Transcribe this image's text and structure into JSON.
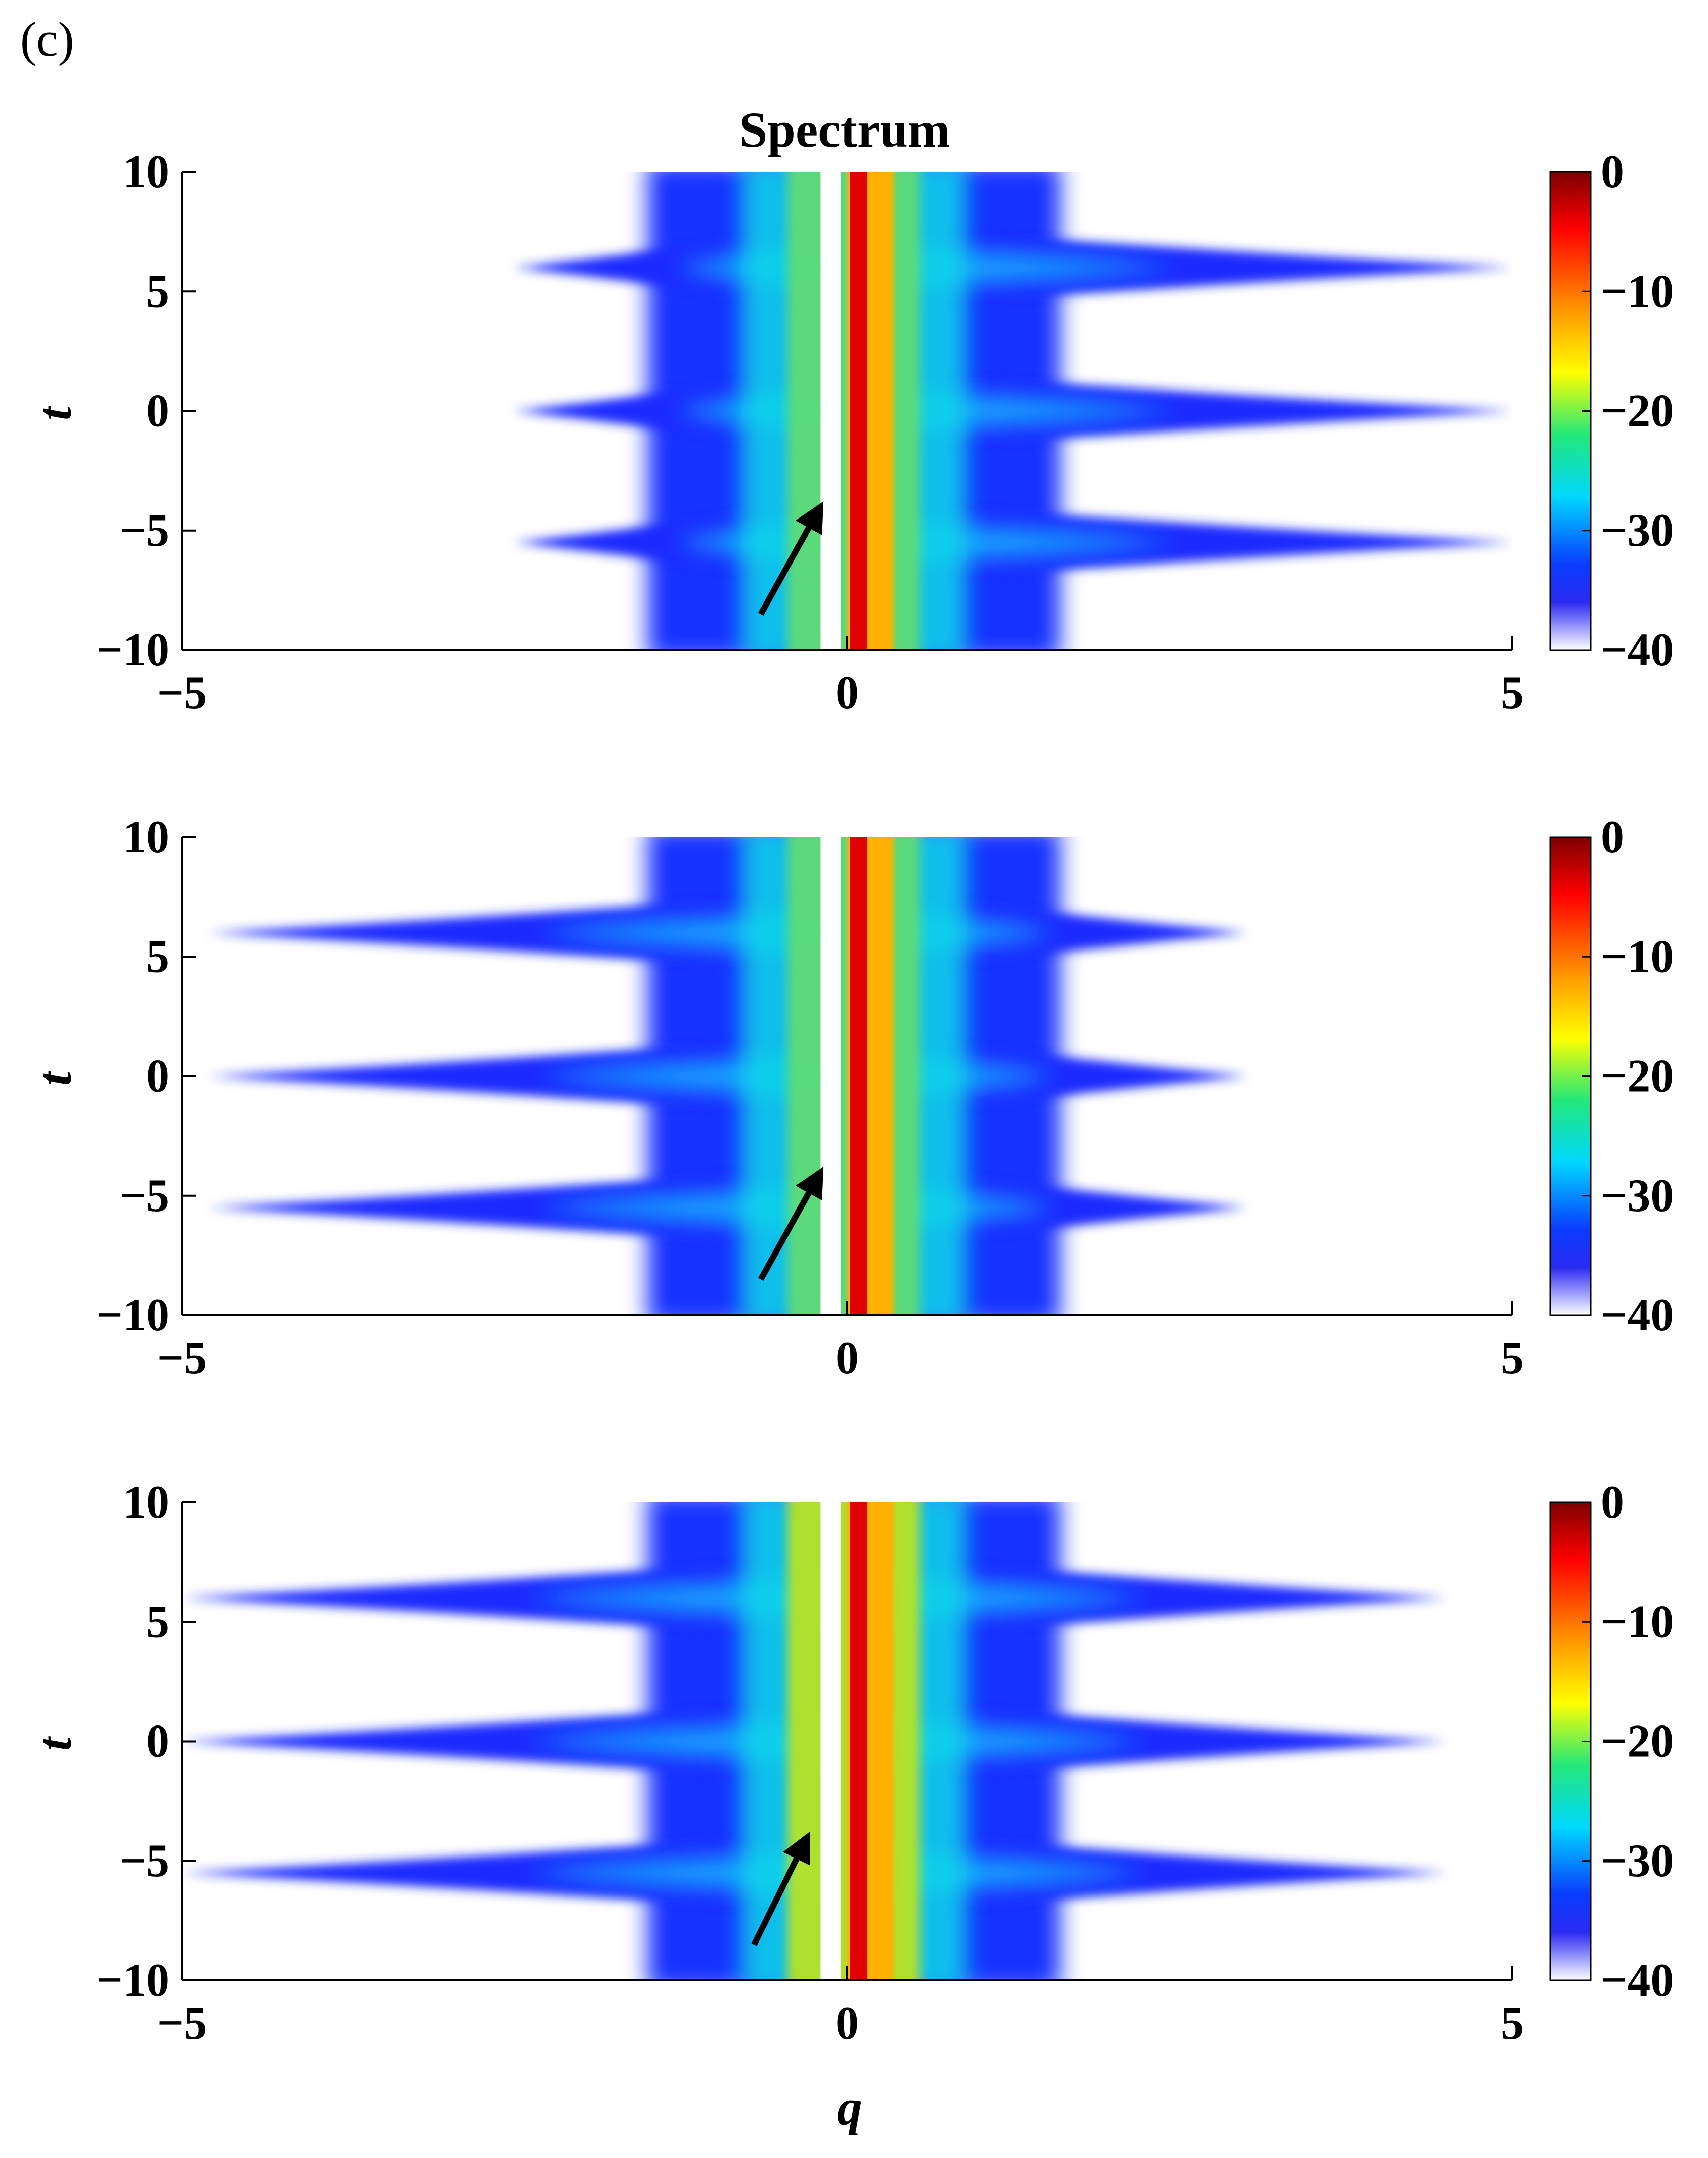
{
  "figure": {
    "panel_label": "(c)",
    "title": "Spectrum",
    "xlabel": "q",
    "ylabel": "t"
  },
  "colorbar": {
    "range": [
      -40,
      0
    ],
    "ticks": [
      0,
      -10,
      -20,
      -30,
      -40
    ],
    "tick_labels": [
      "0",
      "−10",
      "−20",
      "−30",
      "−40"
    ],
    "colormap": "jet with white at -40"
  },
  "chart_data": [
    {
      "type": "heatmap",
      "title": "Spectrum",
      "xlabel": "",
      "ylabel": "t",
      "xlim": [
        -5,
        5
      ],
      "ylim": [
        -10,
        10
      ],
      "xticks": [
        -5,
        0,
        5
      ],
      "xtick_labels": [
        "−5",
        "0",
        "5"
      ],
      "yticks": [
        10,
        5,
        0,
        -5,
        -10
      ],
      "ytick_labels": [
        "10",
        "5",
        "0",
        "−5",
        "−10"
      ],
      "value_range": [
        -40,
        0
      ],
      "features": {
        "core_value": 0,
        "core_q": 0.05,
        "left_lobe_extent_q": -2.5,
        "right_lobe_extent_q": 5.0,
        "lobe_t_centers": [
          6,
          0,
          -5.5
        ]
      },
      "arrow": {
        "from": [
          -0.65,
          -8.5
        ],
        "to": [
          -0.2,
          -4.0
        ]
      }
    },
    {
      "type": "heatmap",
      "title": "",
      "xlabel": "",
      "ylabel": "t",
      "xlim": [
        -5,
        5
      ],
      "ylim": [
        -10,
        10
      ],
      "xticks": [
        -5,
        0,
        5
      ],
      "xtick_labels": [
        "−5",
        "0",
        "5"
      ],
      "yticks": [
        10,
        5,
        0,
        -5,
        -10
      ],
      "ytick_labels": [
        "10",
        "5",
        "0",
        "−5",
        "−10"
      ],
      "value_range": [
        -40,
        0
      ],
      "features": {
        "core_value": 0,
        "core_q": 0.05,
        "left_lobe_extent_q": -4.8,
        "right_lobe_extent_q": 3.0,
        "lobe_t_centers": [
          6,
          0,
          -5.5
        ]
      },
      "arrow": {
        "from": [
          -0.65,
          -8.5
        ],
        "to": [
          -0.2,
          -4.0
        ]
      }
    },
    {
      "type": "heatmap",
      "title": "",
      "xlabel": "q",
      "ylabel": "t",
      "xlim": [
        -5,
        5
      ],
      "ylim": [
        -10,
        10
      ],
      "xticks": [
        -5,
        0,
        5
      ],
      "xtick_labels": [
        "−5",
        "0",
        "5"
      ],
      "yticks": [
        10,
        5,
        0,
        -5,
        -10
      ],
      "ytick_labels": [
        "10",
        "5",
        "0",
        "−5",
        "−10"
      ],
      "value_range": [
        -40,
        0
      ],
      "features": {
        "core_value": 0,
        "core_q": 0.05,
        "left_lobe_extent_q": -5.0,
        "right_lobe_extent_q": 4.5,
        "lobe_t_centers": [
          6,
          0,
          -5.5
        ]
      },
      "arrow": {
        "from": [
          -0.7,
          -8.5
        ],
        "to": [
          -0.3,
          -4.0
        ]
      }
    }
  ]
}
